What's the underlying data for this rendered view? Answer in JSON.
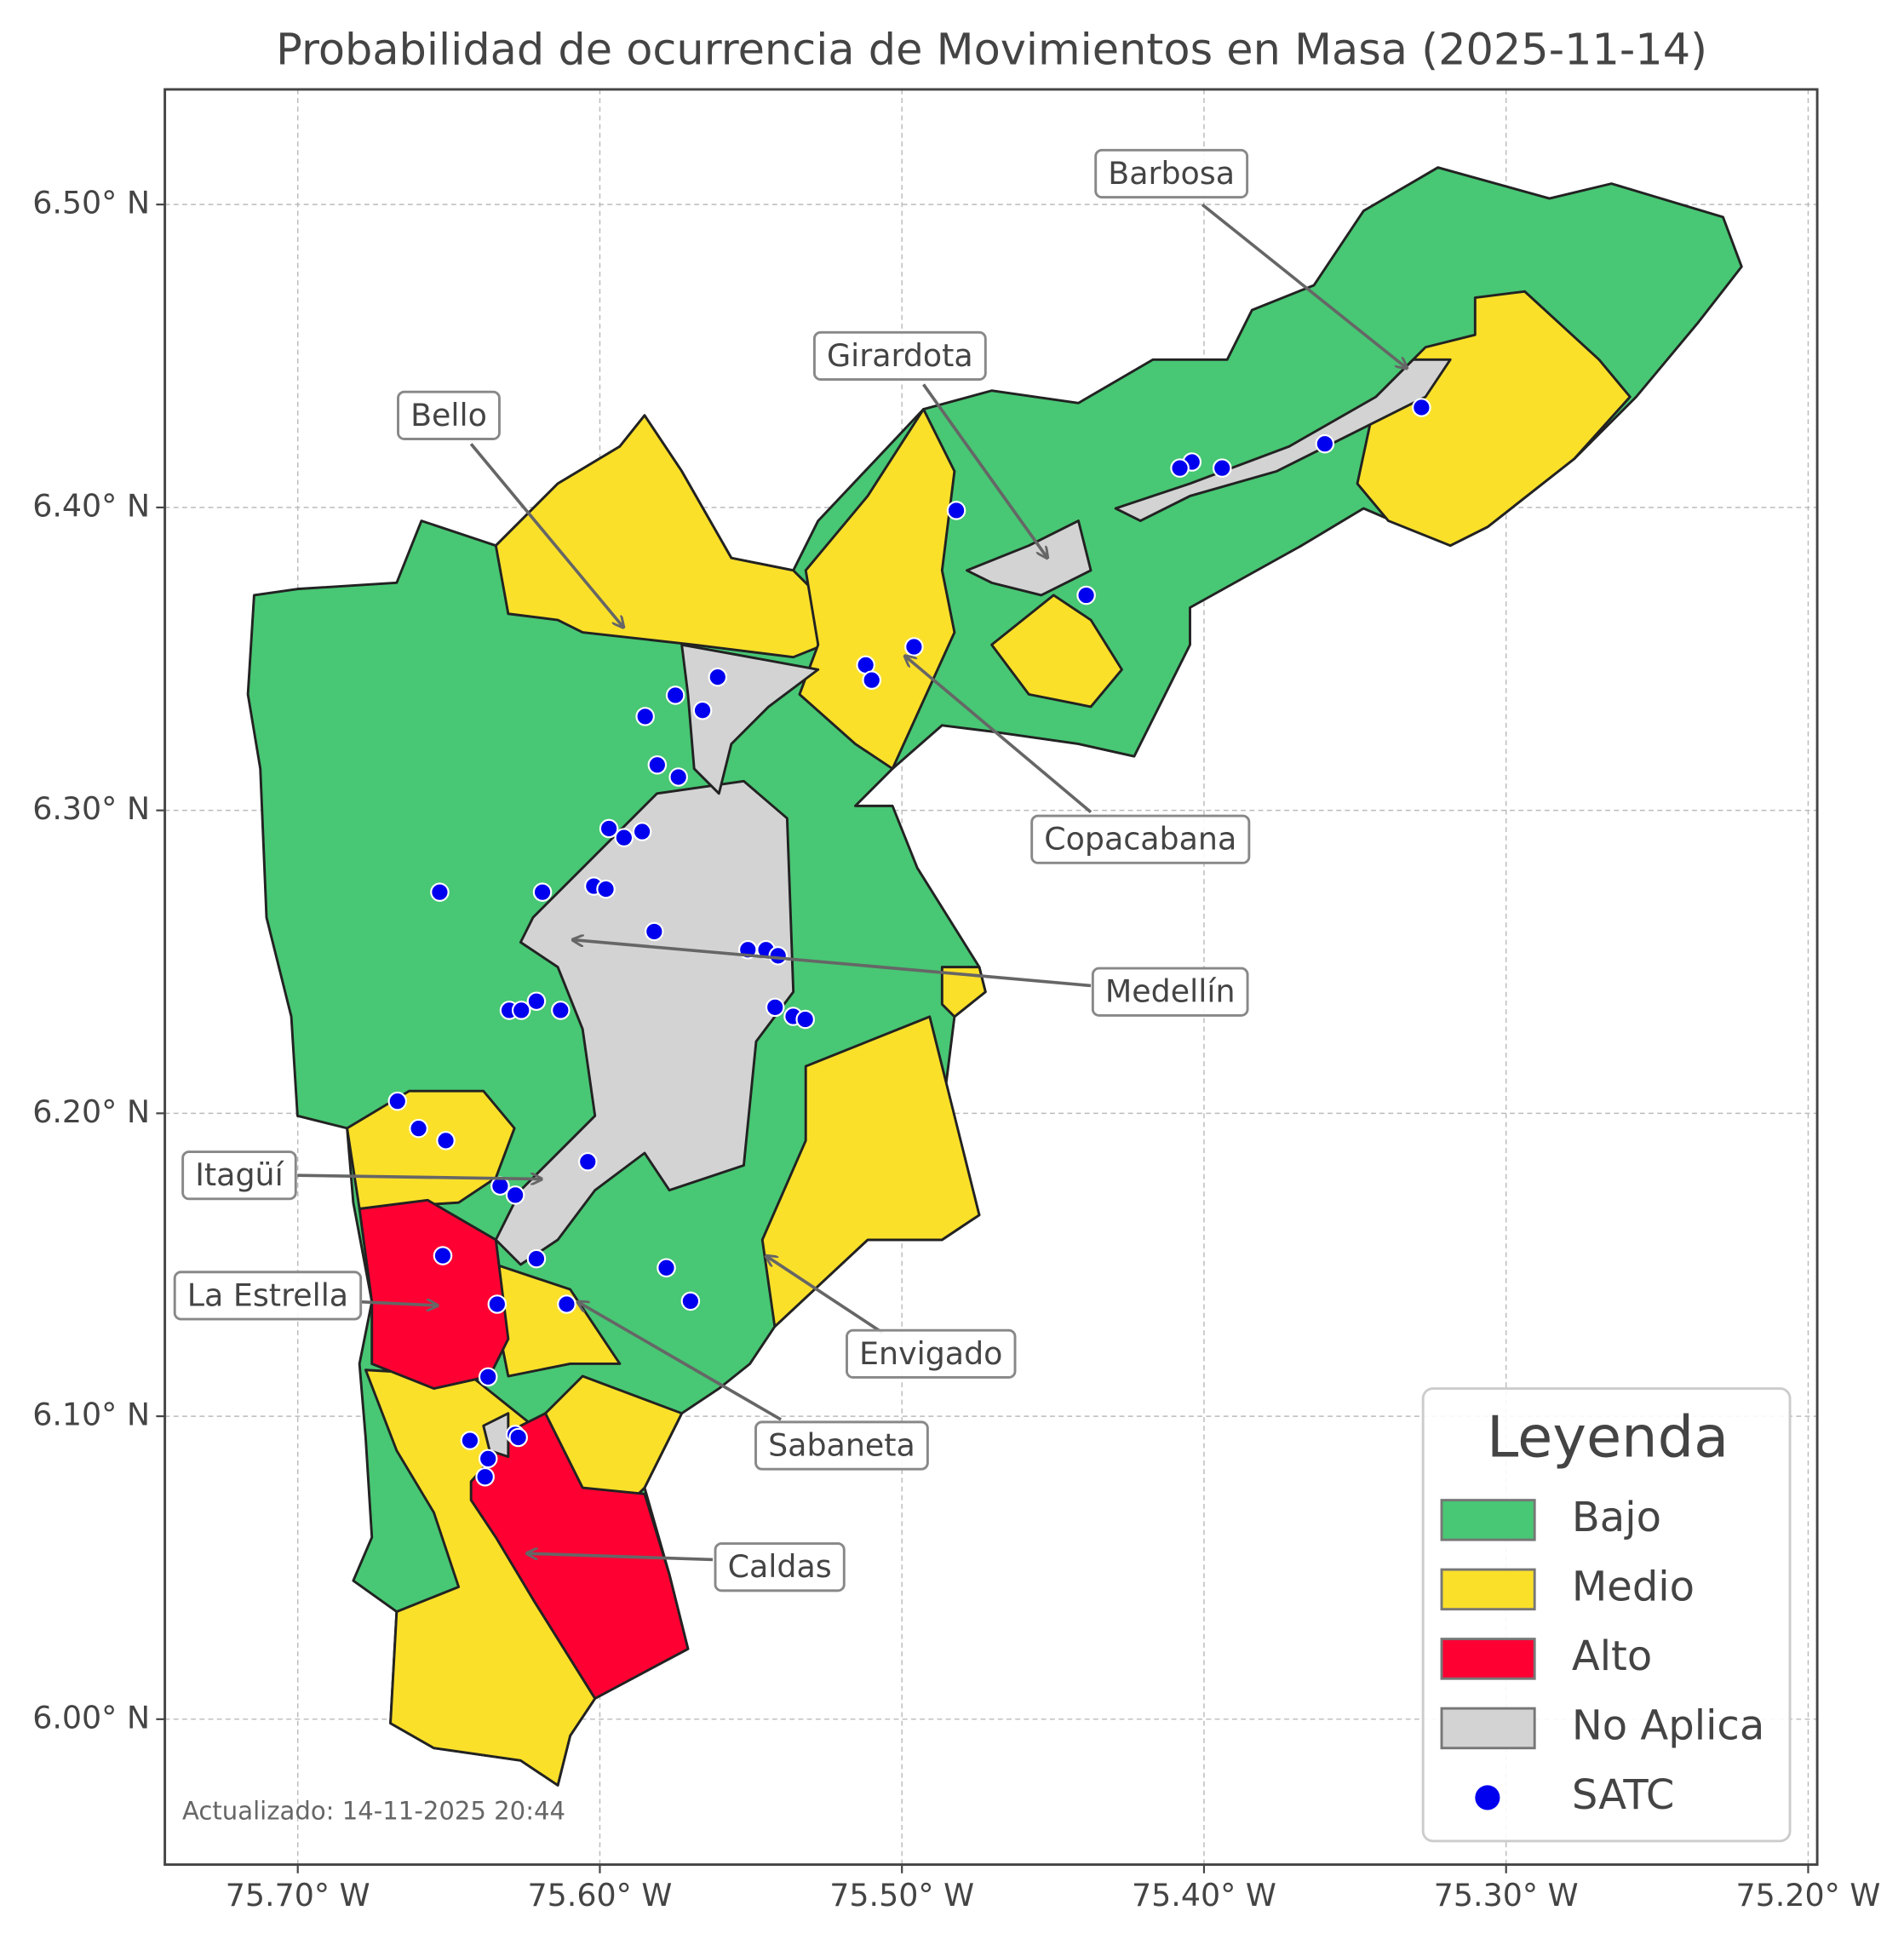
{
  "chart_data": {
    "type": "map",
    "title": "Probabilidad de ocurrencia de Movimientos en Masa (2025-11-14)",
    "xlim": [
      -75.744,
      -75.197
    ],
    "ylim": [
      5.952,
      6.538
    ],
    "grid": true,
    "xticks": [
      {
        "value": -75.7,
        "label": "75.70° W"
      },
      {
        "value": -75.6,
        "label": "75.60° W"
      },
      {
        "value": -75.5,
        "label": "75.50° W"
      },
      {
        "value": -75.4,
        "label": "75.40° W"
      },
      {
        "value": -75.3,
        "label": "75.30° W"
      },
      {
        "value": -75.2,
        "label": "75.20° W"
      }
    ],
    "yticks": [
      {
        "value": 6.0,
        "label": "6.00° N"
      },
      {
        "value": 6.1,
        "label": "6.10° N"
      },
      {
        "value": 6.2,
        "label": "6.20° N"
      },
      {
        "value": 6.3,
        "label": "6.30° N"
      },
      {
        "value": 6.4,
        "label": "6.40° N"
      },
      {
        "value": 6.5,
        "label": "6.50° N"
      }
    ],
    "legend": {
      "title": "Leyenda",
      "classes": [
        {
          "name": "Bajo",
          "color": "#48c774"
        },
        {
          "name": "Medio",
          "color": "#fbe02a"
        },
        {
          "name": "Alto",
          "color": "#ff0033"
        },
        {
          "name": "No Aplica",
          "color": "#d3d3d3"
        }
      ]
    },
    "series": [
      {
        "name": "SATC",
        "color": "#0000ee",
        "x": [
          -75.328,
          -75.36,
          -75.394,
          -75.404,
          -75.408,
          -75.482,
          -75.439,
          -75.496,
          -75.512,
          -75.51,
          -75.561,
          -75.575,
          -75.566,
          -75.585,
          -75.581,
          -75.574,
          -75.597,
          -75.586,
          -75.592,
          -75.653,
          -75.619,
          -75.602,
          -75.598,
          -75.582,
          -75.551,
          -75.545,
          -75.541,
          -75.542,
          -75.536,
          -75.532,
          -75.63,
          -75.626,
          -75.621,
          -75.613,
          -75.667,
          -75.66,
          -75.651,
          -75.604,
          -75.633,
          -75.628,
          -75.652,
          -75.621,
          -75.578,
          -75.57,
          -75.634,
          -75.611,
          -75.637,
          -75.643,
          -75.628,
          -75.627,
          -75.637,
          -75.638
        ],
        "y": [
          6.433,
          6.421,
          6.413,
          6.415,
          6.413,
          6.399,
          6.371,
          6.354,
          6.348,
          6.343,
          6.344,
          6.338,
          6.333,
          6.331,
          6.315,
          6.311,
          6.294,
          6.293,
          6.291,
          6.273,
          6.273,
          6.275,
          6.274,
          6.26,
          6.254,
          6.254,
          6.252,
          6.235,
          6.232,
          6.231,
          6.234,
          6.234,
          6.237,
          6.234,
          6.204,
          6.195,
          6.191,
          6.184,
          6.176,
          6.173,
          6.153,
          6.152,
          6.149,
          6.138,
          6.137,
          6.137,
          6.113,
          6.092,
          6.094,
          6.093,
          6.086,
          6.08
        ]
      }
    ],
    "annotations": [
      "Barbosa",
      "Girardota",
      "Bello",
      "Copacabana",
      "Medellín",
      "Itagüí",
      "La Estrella",
      "Envigado",
      "Sabaneta",
      "Caldas"
    ],
    "note": "Actualizado: 14-11-2025 20:44"
  }
}
